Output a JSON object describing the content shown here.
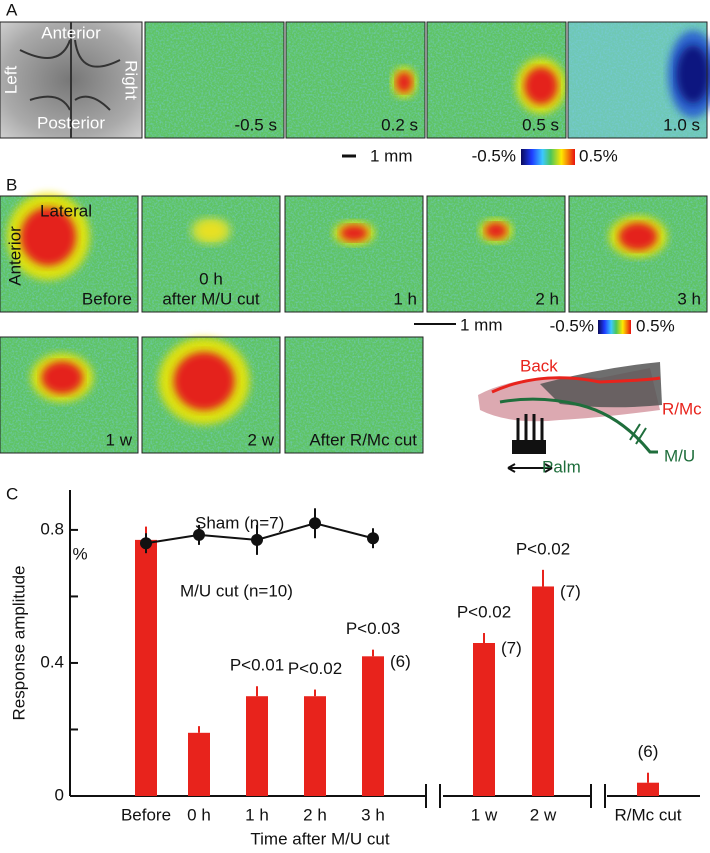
{
  "panel_a": {
    "label": "A",
    "brain_labels": [
      "Anterior",
      "Left",
      "Right",
      "Posterior"
    ],
    "frame_labels": [
      "-0.5 s",
      "0.2 s",
      "0.5 s",
      "1.0 s"
    ],
    "scale_bar": "1 mm",
    "colorbar": [
      "-0.5%",
      "0.5%"
    ]
  },
  "panel_b": {
    "label": "B",
    "orientation_labels": [
      "Lateral",
      "Anterior"
    ],
    "frame_labels": [
      "Before",
      "0 h",
      "1 h",
      "2 h",
      "3 h",
      "1 w",
      "2 w",
      "After R/Mc cut"
    ],
    "frame_sublabel": "after M/U cut",
    "scale_bar": "1 mm",
    "colorbar": [
      "-0.5%",
      "0.5%"
    ],
    "diagram_labels": {
      "back": "Back",
      "rmc": "R/Mc",
      "palm": "Palm",
      "mu": "M/U"
    }
  },
  "chart_data": {
    "type": "bar",
    "panel_label": "C",
    "y_label": "Response amplitude",
    "y_unit": "%",
    "x_label": "Time after M/U cut",
    "categories": [
      "Before",
      "0 h",
      "1 h",
      "2 h",
      "3 h",
      "1 w",
      "2 w",
      "R/Mc cut"
    ],
    "series": [
      {
        "name": "M/U cut (n=10)",
        "type": "bar",
        "color": "#e8231c",
        "values": [
          0.77,
          0.19,
          0.3,
          0.3,
          0.42,
          0.46,
          0.63,
          0.04
        ],
        "errors": [
          0.04,
          0.02,
          0.03,
          0.02,
          0.02,
          0.03,
          0.05,
          0.03
        ]
      },
      {
        "name": "Sham (n=7)",
        "type": "line",
        "color": "#111111",
        "values": [
          0.76,
          0.785,
          0.77,
          0.82,
          0.775,
          null,
          null,
          null
        ],
        "errors": [
          0.03,
          0.03,
          0.045,
          0.045,
          0.03,
          null,
          null,
          null
        ]
      }
    ],
    "p_labels": [
      null,
      null,
      "P<0.01",
      "P<0.02",
      "P<0.03",
      "P<0.02",
      "P<0.02",
      null
    ],
    "n_labels": [
      null,
      null,
      null,
      null,
      "(6)",
      "(7)",
      "(7)",
      "(6)"
    ],
    "ylim": [
      0,
      0.92
    ],
    "yticks": [
      0,
      0.4,
      0.8
    ],
    "minor_yticks": [
      0.2,
      0.6
    ]
  }
}
